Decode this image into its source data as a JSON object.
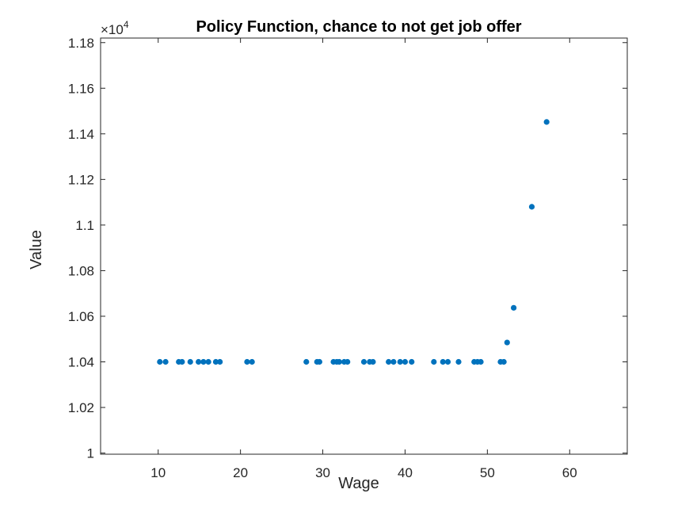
{
  "chart_data": {
    "type": "scatter",
    "title": "Policy Function, chance to not get job offer",
    "xlabel": "Wage",
    "ylabel": "Value",
    "xlim": [
      3,
      67
    ],
    "ylim": [
      9995,
      11820
    ],
    "y_scale_factor": "×10",
    "y_scale_exponent": "4",
    "x_ticks": [
      10,
      20,
      30,
      40,
      50,
      60
    ],
    "y_ticks": [
      10000,
      10200,
      10400,
      10600,
      10800,
      11000,
      11200,
      11400,
      11600,
      11800
    ],
    "y_tick_labels": [
      "1",
      "1.02",
      "1.04",
      "1.06",
      "1.08",
      "1.1",
      "1.12",
      "1.14",
      "1.16",
      "1.18"
    ],
    "marker_color": "#0072BD",
    "grid": false,
    "series": [
      {
        "x": [
          10.2,
          10.9,
          12.5,
          12.9,
          13.9,
          14.9,
          15.5,
          16.1,
          17.0,
          17.5,
          20.8,
          21.4,
          28.0,
          29.3,
          29.6,
          31.3,
          31.7,
          32.0,
          32.6,
          33.0,
          35.0,
          35.7,
          36.1,
          38.0,
          38.6,
          39.4,
          40.0,
          40.8,
          43.5,
          44.6,
          45.2,
          46.5,
          48.4,
          48.8,
          49.2,
          51.6,
          52.0,
          52.4,
          53.2,
          55.4,
          57.2
        ],
        "y": [
          10400,
          10400,
          10400,
          10400,
          10400,
          10400,
          10400,
          10400,
          10400,
          10400,
          10400,
          10400,
          10400,
          10400,
          10400,
          10400,
          10400,
          10400,
          10400,
          10400,
          10400,
          10400,
          10400,
          10400,
          10400,
          10400,
          10400,
          10400,
          10400,
          10400,
          10400,
          10400,
          10400,
          10400,
          10400,
          10400,
          10400,
          10485,
          10637,
          11080,
          11452
        ]
      }
    ]
  }
}
